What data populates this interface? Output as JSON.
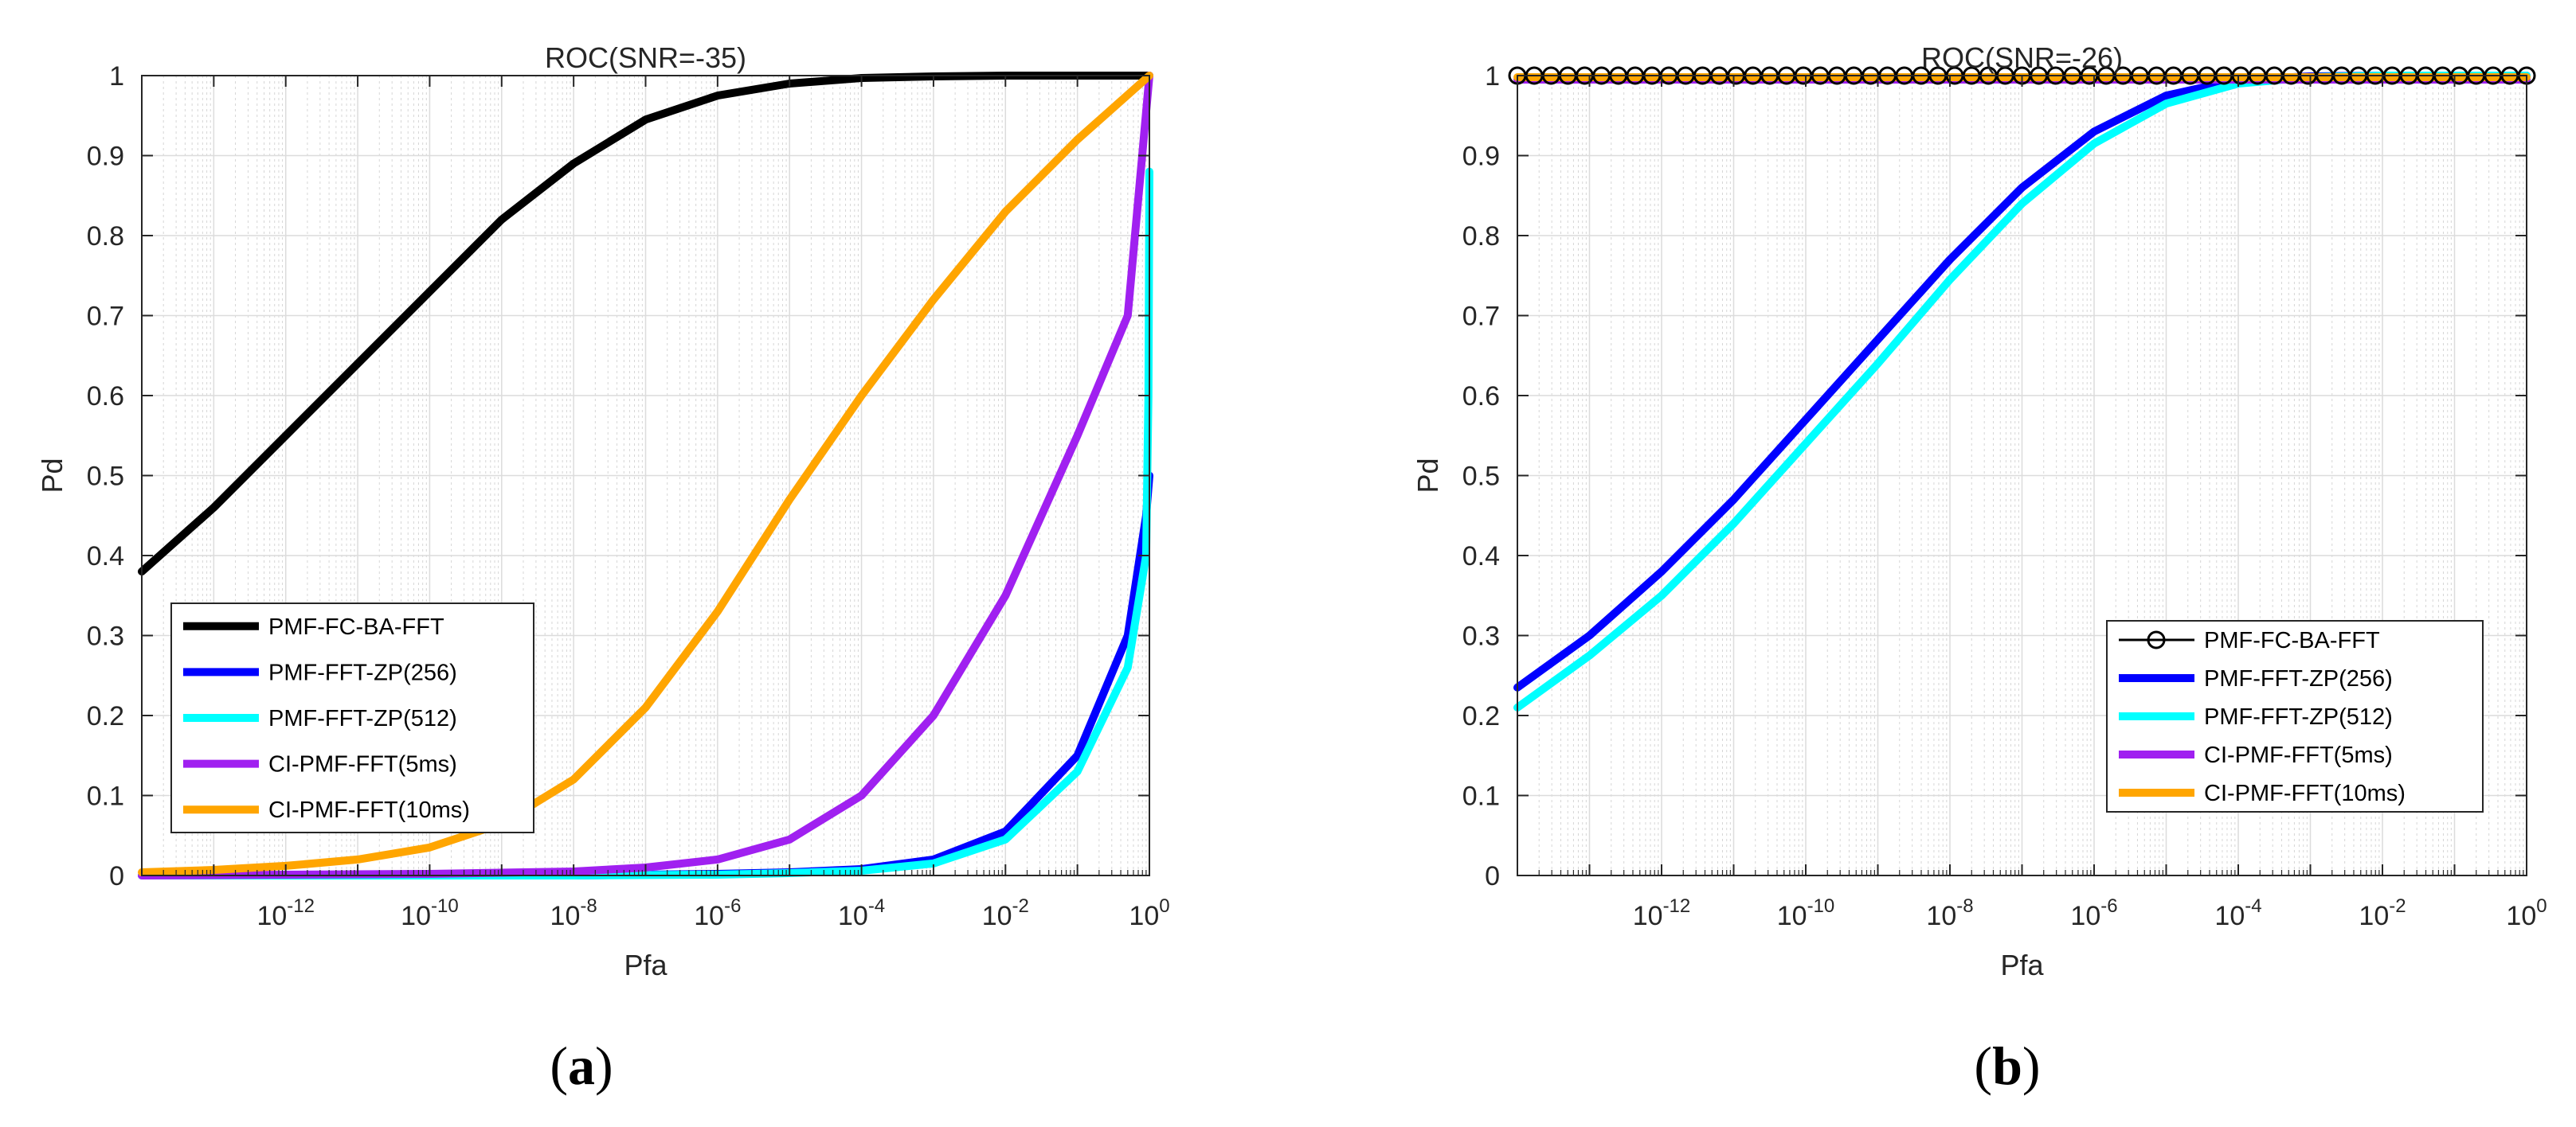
{
  "chart_data": [
    {
      "type": "line",
      "panel_label": "a",
      "title": "ROC(SNR=-35)",
      "xlabel": "Pfa",
      "ylabel": "Pd",
      "xscale": "log",
      "xlim": [
        1e-14,
        1
      ],
      "ylim": [
        0,
        1
      ],
      "grid": true,
      "legend_position": "bottom-left",
      "xticks": [
        {
          "base": "10",
          "exp": "-12",
          "value": 1e-12
        },
        {
          "base": "10",
          "exp": "-10",
          "value": 1e-10
        },
        {
          "base": "10",
          "exp": "-8",
          "value": 1e-08
        },
        {
          "base": "10",
          "exp": "-6",
          "value": 1e-06
        },
        {
          "base": "10",
          "exp": "-4",
          "value": 0.0001
        },
        {
          "base": "10",
          "exp": "-2",
          "value": 0.01
        },
        {
          "base": "10",
          "exp": "0",
          "value": 1
        }
      ],
      "yticks": [
        "0",
        "0.1",
        "0.2",
        "0.3",
        "0.4",
        "0.5",
        "0.6",
        "0.7",
        "0.8",
        "0.9",
        "1"
      ],
      "series": [
        {
          "name": "PMF-FC-BA-FFT",
          "color": "#000000",
          "marker": "none",
          "x": [
            1e-14,
            1e-13,
            1e-12,
            1e-11,
            1e-10,
            1e-09,
            1e-08,
            1e-07,
            1e-06,
            1e-05,
            0.0001,
            0.001,
            0.01,
            0.1,
            1
          ],
          "y": [
            0.38,
            0.46,
            0.55,
            0.64,
            0.73,
            0.82,
            0.89,
            0.945,
            0.975,
            0.99,
            0.997,
            0.999,
            1.0,
            1.0,
            1.0
          ]
        },
        {
          "name": "PMF-FFT-ZP(256)",
          "color": "#0000ff",
          "marker": "none",
          "x": [
            1e-14,
            1e-10,
            1e-08,
            1e-06,
            1e-05,
            0.0001,
            0.001,
            0.01,
            0.1,
            0.5,
            0.9,
            1
          ],
          "y": [
            0,
            0,
            0,
            0.002,
            0.004,
            0.008,
            0.02,
            0.055,
            0.15,
            0.3,
            0.45,
            0.5
          ]
        },
        {
          "name": "PMF-FFT-ZP(512)",
          "color": "#00ffff",
          "marker": "none",
          "x": [
            1e-14,
            1e-10,
            1e-08,
            1e-06,
            1e-05,
            0.0001,
            0.001,
            0.01,
            0.1,
            0.5,
            0.9,
            0.97,
            1
          ],
          "y": [
            0,
            0,
            0,
            0.001,
            0.003,
            0.006,
            0.015,
            0.045,
            0.13,
            0.26,
            0.4,
            0.6,
            0.88
          ]
        },
        {
          "name": "CI-PMF-FFT(5ms)",
          "color": "#a020f0",
          "marker": "none",
          "x": [
            1e-14,
            1e-12,
            1e-10,
            1e-08,
            1e-07,
            1e-06,
            1e-05,
            0.0001,
            0.001,
            0.01,
            0.1,
            0.5,
            1
          ],
          "y": [
            0,
            0.001,
            0.002,
            0.005,
            0.01,
            0.02,
            0.045,
            0.1,
            0.2,
            0.35,
            0.55,
            0.7,
            1.0
          ]
        },
        {
          "name": "CI-PMF-FFT(10ms)",
          "color": "#ffa500",
          "marker": "none",
          "x": [
            1e-14,
            1e-13,
            1e-12,
            1e-11,
            1e-10,
            1e-09,
            1e-08,
            1e-07,
            1e-06,
            1e-05,
            0.0001,
            0.001,
            0.01,
            0.1,
            1
          ],
          "y": [
            0.004,
            0.007,
            0.012,
            0.02,
            0.035,
            0.065,
            0.12,
            0.21,
            0.33,
            0.47,
            0.6,
            0.72,
            0.83,
            0.92,
            1.0
          ]
        }
      ]
    },
    {
      "type": "line",
      "panel_label": "b",
      "title": "ROC(SNR=-26)",
      "xlabel": "Pfa",
      "ylabel": "Pd",
      "xscale": "log",
      "xlim": [
        1e-14,
        1
      ],
      "ylim": [
        0,
        1
      ],
      "grid": true,
      "legend_position": "bottom-right",
      "xticks": [
        {
          "base": "10",
          "exp": "-12",
          "value": 1e-12
        },
        {
          "base": "10",
          "exp": "-10",
          "value": 1e-10
        },
        {
          "base": "10",
          "exp": "-8",
          "value": 1e-08
        },
        {
          "base": "10",
          "exp": "-6",
          "value": 1e-06
        },
        {
          "base": "10",
          "exp": "-4",
          "value": 0.0001
        },
        {
          "base": "10",
          "exp": "-2",
          "value": 0.01
        },
        {
          "base": "10",
          "exp": "0",
          "value": 1
        }
      ],
      "yticks": [
        "0",
        "0.1",
        "0.2",
        "0.3",
        "0.4",
        "0.5",
        "0.6",
        "0.7",
        "0.8",
        "0.9",
        "1"
      ],
      "series": [
        {
          "name": "PMF-FC-BA-FFT",
          "color": "#000000",
          "marker": "circle",
          "x": [
            1e-14,
            1
          ],
          "y": [
            1.0,
            1.0
          ]
        },
        {
          "name": "PMF-FFT-ZP(256)",
          "color": "#0000ff",
          "marker": "none",
          "x": [
            1e-14,
            1e-13,
            1e-12,
            1e-11,
            1e-10,
            1e-09,
            1e-08,
            1e-07,
            1e-06,
            1e-05,
            0.0001,
            0.001,
            0.01,
            0.1,
            1
          ],
          "y": [
            0.235,
            0.3,
            0.38,
            0.47,
            0.57,
            0.67,
            0.77,
            0.86,
            0.93,
            0.975,
            0.995,
            0.999,
            1.0,
            1.0,
            1.0
          ]
        },
        {
          "name": "PMF-FFT-ZP(512)",
          "color": "#00ffff",
          "marker": "none",
          "x": [
            1e-14,
            1e-13,
            1e-12,
            1e-11,
            1e-10,
            1e-09,
            1e-08,
            1e-07,
            1e-06,
            1e-05,
            0.0001,
            0.001,
            0.01,
            0.1,
            1
          ],
          "y": [
            0.21,
            0.275,
            0.35,
            0.44,
            0.54,
            0.64,
            0.745,
            0.84,
            0.915,
            0.965,
            0.99,
            0.998,
            1.0,
            1.0,
            1.0
          ]
        },
        {
          "name": "CI-PMF-FFT(5ms)",
          "color": "#a020f0",
          "marker": "none",
          "x": [
            1e-14,
            1
          ],
          "y": [
            0.995,
            0.995
          ]
        },
        {
          "name": "CI-PMF-FFT(10ms)",
          "color": "#ffa500",
          "marker": "none",
          "x": [
            1e-14,
            1
          ],
          "y": [
            0.998,
            0.998
          ]
        }
      ]
    }
  ]
}
